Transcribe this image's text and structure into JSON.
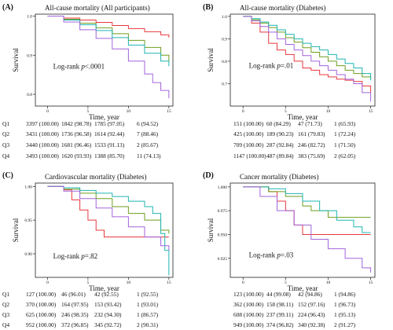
{
  "figure": {
    "row_labels": [
      "Q1",
      "Q2",
      "Q3",
      "Q4"
    ],
    "series_colors": [
      "#e8383d",
      "#6e9e1f",
      "#1fb5b0",
      "#a264dc"
    ]
  },
  "chart_data": [
    {
      "type": "line",
      "panel_label": "(A)",
      "title": "All-cause mortality (All participants)",
      "xlabel": "Time, year",
      "ylabel": "Survival",
      "xlim": [
        -1.5,
        15.5
      ],
      "ylim": [
        0.77,
        1.005
      ],
      "x_ticks": [
        0,
        5,
        10,
        15
      ],
      "y_ticks": [
        {
          "value": 1.0,
          "label": "1.0"
        },
        {
          "value": 0.9,
          "label": "0.9"
        },
        {
          "value": 0.8,
          "label": "0.8"
        }
      ],
      "annotation": "Log-rank p<.0001",
      "annotation_pos": [
        0.5,
        0.865
      ],
      "grid": false,
      "series": [
        {
          "x": [
            0,
            2,
            4,
            6,
            8,
            10,
            12,
            14,
            15
          ],
          "y": [
            1.0,
            0.995,
            0.99,
            0.984,
            0.976,
            0.968,
            0.96,
            0.952,
            0.945
          ]
        },
        {
          "x": [
            0,
            2,
            4,
            6,
            8,
            10,
            12,
            14,
            15
          ],
          "y": [
            1.0,
            0.992,
            0.982,
            0.97,
            0.955,
            0.938,
            0.92,
            0.9,
            0.885
          ]
        },
        {
          "x": [
            0,
            2,
            4,
            6,
            8,
            10,
            12,
            14,
            15
          ],
          "y": [
            1.0,
            0.99,
            0.978,
            0.963,
            0.945,
            0.926,
            0.905,
            0.885,
            0.872
          ]
        },
        {
          "x": [
            0,
            2,
            4,
            6,
            8,
            10,
            12,
            13,
            14,
            15
          ],
          "y": [
            1.0,
            0.985,
            0.965,
            0.943,
            0.916,
            0.885,
            0.852,
            0.83,
            0.81,
            0.79
          ]
        }
      ],
      "risk_table": [
        [
          "3397 (100.00)",
          "1842 (98.78)",
          "1785 (97.05)",
          "6 (94.52)"
        ],
        [
          "3431 (100.00)",
          "1736 (96.58)",
          "1614 (92.44)",
          "7 (88.46)"
        ],
        [
          "3440 (100.00)",
          "1681 (96.46)",
          "1533 (91.13)",
          "2 (85.67)"
        ],
        [
          "3493 (100.00)",
          "1620 (93.93)",
          "1388 (85.70)",
          "11 (74.13)"
        ]
      ]
    },
    {
      "type": "line",
      "panel_label": "(B)",
      "title": "All-cause mortality (Diabetes)",
      "xlabel": "Time, year",
      "ylabel": "Survival",
      "xlim": [
        -1.5,
        15.5
      ],
      "ylim": [
        0.6,
        1.01
      ],
      "x_ticks": [
        0,
        5,
        10,
        15
      ],
      "y_ticks": [
        {
          "value": 1.0,
          "label": "1.0"
        },
        {
          "value": 0.9,
          "label": "0.9"
        },
        {
          "value": 0.8,
          "label": "0.8"
        },
        {
          "value": 0.7,
          "label": "0.7"
        }
      ],
      "annotation": "Log-rank p=.01",
      "annotation_pos": [
        0.5,
        0.77
      ],
      "grid": false,
      "series": [
        {
          "x": [
            0,
            1,
            2,
            3,
            4,
            5,
            6,
            7,
            8,
            9,
            10,
            11,
            12,
            13,
            14,
            15
          ],
          "y": [
            1.0,
            0.97,
            0.93,
            0.88,
            0.85,
            0.83,
            0.8,
            0.77,
            0.76,
            0.74,
            0.73,
            0.72,
            0.715,
            0.71,
            0.69,
            0.66
          ]
        },
        {
          "x": [
            0,
            1,
            2,
            3,
            4,
            5,
            6,
            7,
            8,
            9,
            10,
            11,
            12,
            13,
            14,
            15
          ],
          "y": [
            1.0,
            0.985,
            0.97,
            0.95,
            0.93,
            0.905,
            0.885,
            0.86,
            0.84,
            0.82,
            0.8,
            0.78,
            0.76,
            0.745,
            0.73,
            0.72
          ]
        },
        {
          "x": [
            0,
            1,
            2,
            3,
            4,
            5,
            6,
            7,
            8,
            9,
            10,
            11,
            12,
            13,
            14,
            15
          ],
          "y": [
            1.0,
            0.99,
            0.975,
            0.96,
            0.94,
            0.92,
            0.9,
            0.88,
            0.865,
            0.85,
            0.83,
            0.81,
            0.79,
            0.77,
            0.745,
            0.715
          ]
        },
        {
          "x": [
            0,
            1,
            2,
            3,
            4,
            5,
            6,
            7,
            8,
            9,
            10,
            11,
            12,
            13,
            14,
            15
          ],
          "y": [
            1.0,
            0.98,
            0.955,
            0.93,
            0.9,
            0.875,
            0.85,
            0.825,
            0.8,
            0.78,
            0.76,
            0.74,
            0.72,
            0.7,
            0.66,
            0.62
          ]
        }
      ],
      "risk_table": [
        [
          "151 (100.00)",
          "60 (84.29)",
          "47 (71.73)",
          "1 (65.93)"
        ],
        [
          "425 (100.00)",
          "189 (90.23)",
          "161 (79.83)",
          "1 (72.24)"
        ],
        [
          "709 (100.00)",
          "287 (92.84)",
          "246 (82.72)",
          "1 (71.50)"
        ],
        [
          "1147 (100.00)",
          "487 (89.84)",
          "383 (75.69)",
          "2 (62.05)"
        ]
      ]
    },
    {
      "type": "line",
      "panel_label": "(C)",
      "title": "Cardiovascular mortality (Diabetes)",
      "xlabel": "Time, year",
      "ylabel": "Survival",
      "xlim": [
        -1.5,
        15.5
      ],
      "ylim": [
        0.865,
        1.005
      ],
      "x_ticks": [
        0,
        5,
        10,
        15
      ],
      "y_ticks": [
        {
          "value": 1.0,
          "label": "1.00"
        },
        {
          "value": 0.95,
          "label": "0.95"
        },
        {
          "value": 0.9,
          "label": "0.90"
        }
      ],
      "annotation": "Log-rank p=.82",
      "annotation_pos": [
        0.5,
        0.893
      ],
      "grid": false,
      "series": [
        {
          "x": [
            0,
            2,
            3,
            4,
            5,
            6,
            7,
            8,
            15
          ],
          "y": [
            1.0,
            0.995,
            0.98,
            0.965,
            0.95,
            0.935,
            0.925,
            0.925,
            0.925
          ]
        },
        {
          "x": [
            0,
            2,
            4,
            6,
            8,
            10,
            12,
            14,
            15
          ],
          "y": [
            1.0,
            0.996,
            0.99,
            0.982,
            0.97,
            0.96,
            0.95,
            0.935,
            0.93
          ]
        },
        {
          "x": [
            0,
            2,
            4,
            6,
            8,
            10,
            12,
            13,
            14,
            14.5,
            15
          ],
          "y": [
            1.0,
            0.998,
            0.994,
            0.99,
            0.985,
            0.978,
            0.97,
            0.96,
            0.93,
            0.905,
            0.868
          ]
        },
        {
          "x": [
            0,
            2,
            4,
            6,
            8,
            10,
            12,
            14,
            15
          ],
          "y": [
            1.0,
            0.993,
            0.982,
            0.968,
            0.955,
            0.94,
            0.925,
            0.912,
            0.905
          ]
        }
      ],
      "risk_table": [
        [
          "127 (100.00)",
          "46 (96.01)",
          "42 (92.55)",
          "1 (92.55)"
        ],
        [
          "370 (100.00)",
          "164 (97.95)",
          "153 (93.42)",
          "1 (93.01)"
        ],
        [
          "625 (100.00)",
          "246 (98.35)",
          "232 (94.30)",
          "1 (86.57)"
        ],
        [
          "952 (100.00)",
          "372 (96.85)",
          "345 (92.72)",
          "2 (90.31)"
        ]
      ]
    },
    {
      "type": "line",
      "panel_label": "(D)",
      "title": "Cancer mortality (Diabetes)",
      "xlabel": "Time, year",
      "ylabel": "Survival",
      "xlim": [
        -1.5,
        15.5
      ],
      "ylim": [
        0.905,
        1.004
      ],
      "x_ticks": [
        0,
        5,
        10,
        15
      ],
      "y_ticks": [
        {
          "value": 1.0,
          "label": "1.000"
        },
        {
          "value": 0.975,
          "label": "0.975"
        },
        {
          "value": 0.95,
          "label": "0.950"
        },
        {
          "value": 0.925,
          "label": "0.925"
        }
      ],
      "annotation": "Log-rank p=.03",
      "annotation_pos": [
        0.5,
        0.926
      ],
      "grid": false,
      "series": [
        {
          "x": [
            0,
            3,
            4,
            5,
            6,
            7,
            8,
            10,
            15
          ],
          "y": [
            1.0,
            0.995,
            0.985,
            0.975,
            0.96,
            0.95,
            0.95,
            0.95,
            0.95
          ]
        },
        {
          "x": [
            0,
            3,
            5,
            7,
            8,
            10,
            15
          ],
          "y": [
            1.0,
            0.995,
            0.99,
            0.98,
            0.975,
            0.968,
            0.968
          ]
        },
        {
          "x": [
            0,
            3,
            5,
            7,
            9,
            11,
            13,
            14,
            15
          ],
          "y": [
            1.0,
            0.998,
            0.993,
            0.985,
            0.975,
            0.965,
            0.958,
            0.952,
            0.952
          ]
        },
        {
          "x": [
            0,
            2,
            4,
            6,
            8,
            10,
            12,
            14,
            15
          ],
          "y": [
            1.0,
            0.99,
            0.975,
            0.96,
            0.945,
            0.935,
            0.925,
            0.915,
            0.91
          ]
        }
      ],
      "risk_table": [
        [
          "123 (100.00)",
          "44 (99.08)",
          "42 (94.86)",
          "1 (94.86)"
        ],
        [
          "362 (100.00)",
          "158 (98.11)",
          "152 (97.16)",
          "1 (96.73)"
        ],
        [
          "608 (100.00)",
          "237 (99.11)",
          "224 (96.43)",
          "1 (95.13)"
        ],
        [
          "949 (100.00)",
          "374 (96.82)",
          "340 (92.38)",
          "2 (91.27)"
        ]
      ]
    }
  ]
}
